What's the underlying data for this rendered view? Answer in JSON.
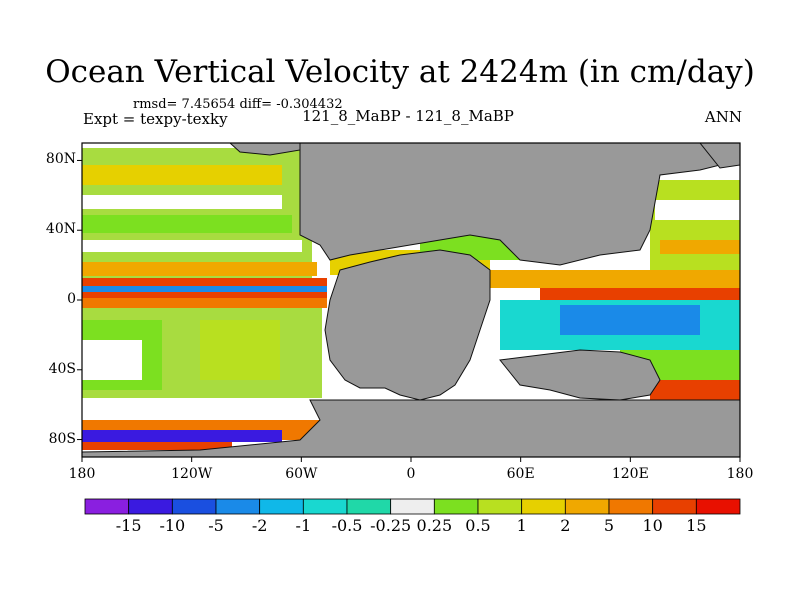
{
  "title": "Ocean Vertical Velocity at 2424m (in cm/day)",
  "stats": "rmsd= 7.45654 diff= -0.304432",
  "expt": "Expt = texpy-texky",
  "subtitle": "121_8_MaBP - 121_8_MaBP",
  "season": "ANN",
  "map": {
    "lat_ticks": [
      "80N",
      "40N",
      "0",
      "40S",
      "80S"
    ],
    "lat_values": [
      80,
      40,
      0,
      -40,
      -80
    ],
    "lon_ticks": [
      "180",
      "120W",
      "60W",
      "0",
      "60E",
      "120E",
      "180"
    ],
    "lon_values": [
      -180,
      -120,
      -60,
      0,
      60,
      120,
      180
    ],
    "land_color": "#999999",
    "ocean_background": "#ffffff"
  },
  "colorbar": {
    "labels": [
      "-15",
      "-10",
      "-5",
      "-2",
      "-1",
      "-0.5",
      "-0.25",
      "0.25",
      "0.5",
      "1",
      "2",
      "5",
      "10",
      "15"
    ],
    "colors": [
      "#8a1fe0",
      "#3a1ae0",
      "#1a4fe0",
      "#1a8ae8",
      "#10b8e8",
      "#19d8d0",
      "#20d8a8",
      "#eeeeee",
      "#7ce020",
      "#b8e020",
      "#e6d000",
      "#f0a800",
      "#f07800",
      "#e84000",
      "#e81000"
    ]
  }
}
